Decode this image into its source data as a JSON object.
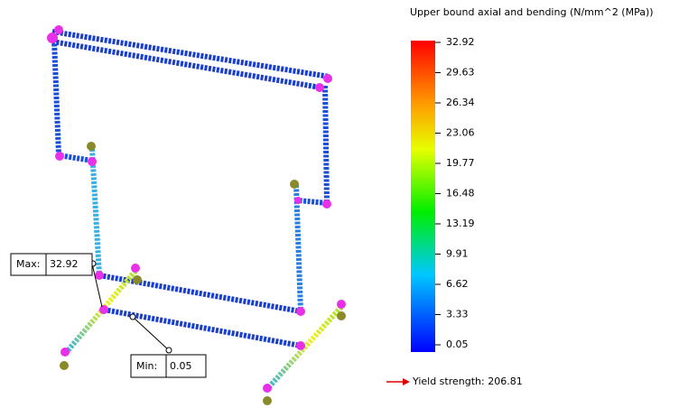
{
  "legend": {
    "title": "Upper bound axial and bending (N/mm^2 (MPa))",
    "ticks": [
      "32.92",
      "29.63",
      "26.34",
      "23.06",
      "19.77",
      "16.48",
      "13.19",
      "9.91",
      "6.62",
      "3.33",
      "0.05"
    ]
  },
  "annotations": {
    "max_label": "Max:",
    "max_value": "32.92",
    "min_label": "Min:",
    "min_value": "0.05"
  },
  "yield_strength": "Yield strength: 206.81"
}
